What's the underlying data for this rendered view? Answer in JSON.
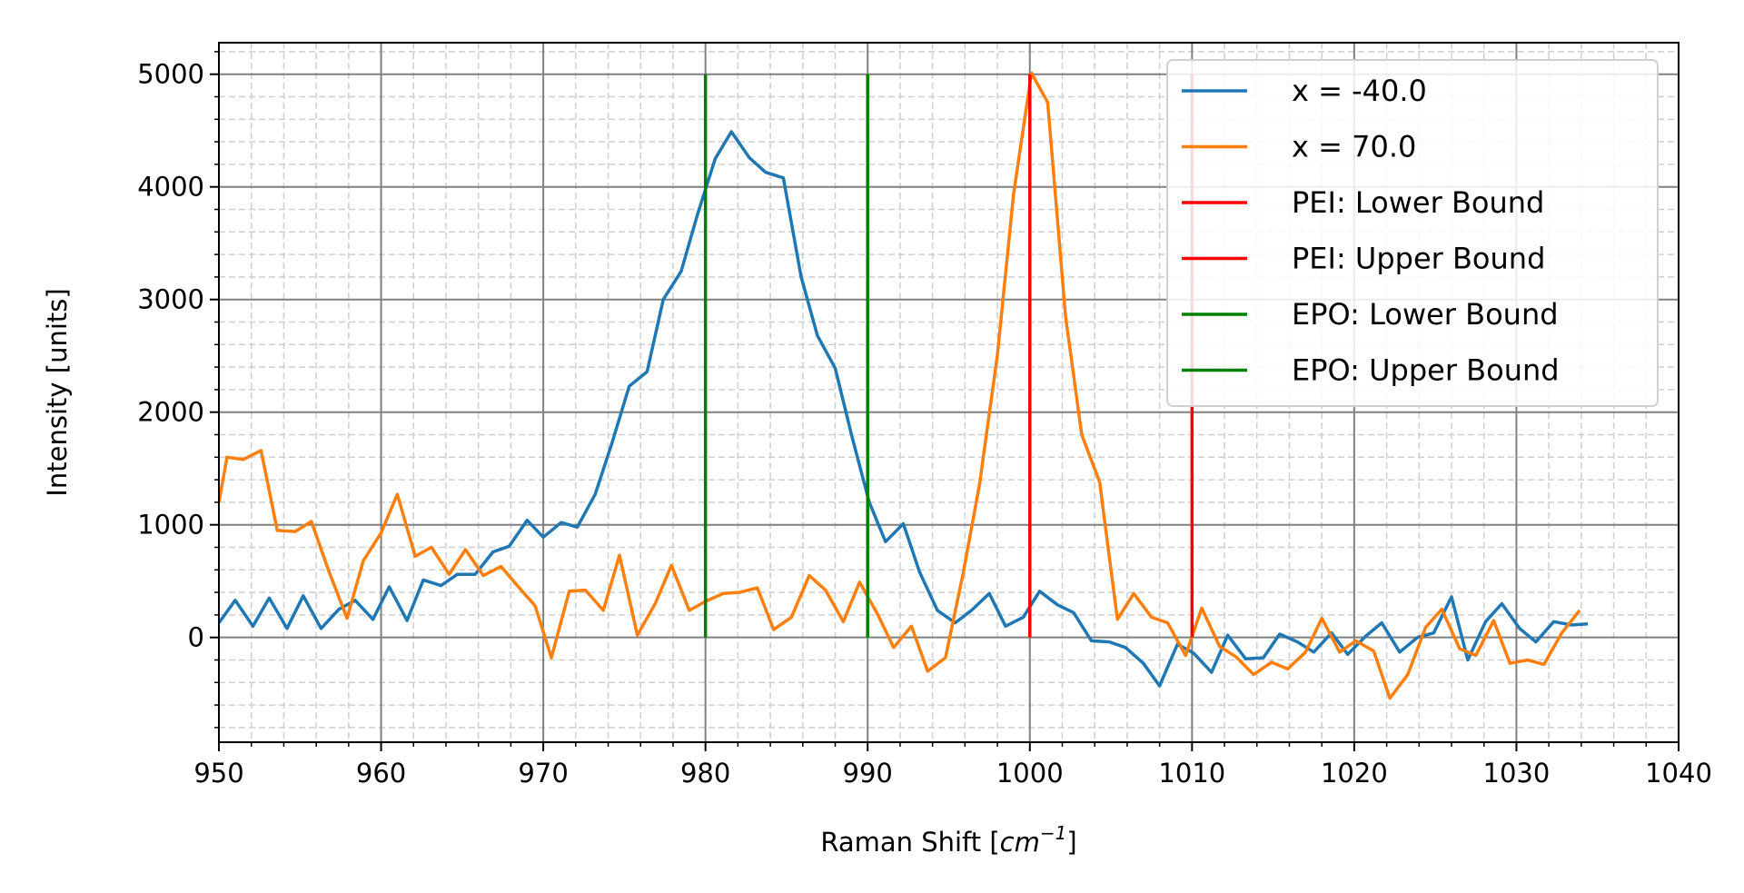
{
  "chart_data": {
    "type": "line",
    "title": "",
    "xlabel": "Raman Shift [",
    "xlabel_unit": "cm",
    "xlabel_exp": "−1",
    "xlabel_close": "]",
    "ylabel": "Intensity [units]",
    "xlim": [
      950,
      1040
    ],
    "ylim": [
      -930,
      5280
    ],
    "grid": true,
    "minor_grid": true,
    "legend_position": "top-right",
    "x_ticks": [
      950,
      960,
      970,
      980,
      990,
      1000,
      1010,
      1020,
      1030,
      1040
    ],
    "x_tick_labels": [
      "950",
      "960",
      "970",
      "980",
      "990",
      "1000",
      "1010",
      "1020",
      "1030",
      "1040"
    ],
    "y_ticks": [
      0,
      1000,
      2000,
      3000,
      4000,
      5000
    ],
    "y_tick_labels": [
      "0",
      "1000",
      "2000",
      "3000",
      "4000",
      "5000"
    ],
    "series": [
      {
        "name": "x = -40.0",
        "color": "#1f77b4",
        "points": [
          [
            950.0,
            130
          ],
          [
            951.0,
            330
          ],
          [
            952.1,
            100
          ],
          [
            953.1,
            350
          ],
          [
            954.2,
            80
          ],
          [
            955.2,
            370
          ],
          [
            956.3,
            80
          ],
          [
            957.4,
            250
          ],
          [
            958.4,
            330
          ],
          [
            959.5,
            160
          ],
          [
            960.5,
            450
          ],
          [
            961.6,
            150
          ],
          [
            962.6,
            510
          ],
          [
            963.7,
            460
          ],
          [
            964.7,
            560
          ],
          [
            965.8,
            560
          ],
          [
            966.9,
            760
          ],
          [
            967.9,
            810
          ],
          [
            969.0,
            1040
          ],
          [
            970.0,
            890
          ],
          [
            971.1,
            1020
          ],
          [
            972.1,
            980
          ],
          [
            973.2,
            1270
          ],
          [
            974.2,
            1710
          ],
          [
            975.3,
            2230
          ],
          [
            976.4,
            2360
          ],
          [
            977.4,
            3000
          ],
          [
            978.5,
            3250
          ],
          [
            979.5,
            3750
          ],
          [
            980.6,
            4250
          ],
          [
            981.6,
            4490
          ],
          [
            982.7,
            4260
          ],
          [
            983.7,
            4130
          ],
          [
            984.8,
            4080
          ],
          [
            985.9,
            3200
          ],
          [
            986.9,
            2680
          ],
          [
            988.0,
            2390
          ],
          [
            989.0,
            1800
          ],
          [
            990.1,
            1200
          ],
          [
            991.1,
            850
          ],
          [
            992.2,
            1010
          ],
          [
            993.2,
            580
          ],
          [
            994.3,
            240
          ],
          [
            995.4,
            130
          ],
          [
            996.4,
            240
          ],
          [
            997.5,
            390
          ],
          [
            998.5,
            100
          ],
          [
            999.6,
            180
          ],
          [
            1000.6,
            410
          ],
          [
            1001.7,
            290
          ],
          [
            1002.7,
            220
          ],
          [
            1003.8,
            -30
          ],
          [
            1004.9,
            -40
          ],
          [
            1005.9,
            -90
          ],
          [
            1007.0,
            -230
          ],
          [
            1008.0,
            -430
          ],
          [
            1009.1,
            -60
          ],
          [
            1010.1,
            -140
          ],
          [
            1011.2,
            -310
          ],
          [
            1012.2,
            20
          ],
          [
            1013.3,
            -190
          ],
          [
            1014.4,
            -180
          ],
          [
            1015.4,
            30
          ],
          [
            1016.5,
            -40
          ],
          [
            1017.5,
            -130
          ],
          [
            1018.6,
            40
          ],
          [
            1019.6,
            -150
          ],
          [
            1020.7,
            10
          ],
          [
            1021.7,
            130
          ],
          [
            1022.8,
            -130
          ],
          [
            1023.9,
            0
          ],
          [
            1024.9,
            40
          ],
          [
            1026.0,
            360
          ],
          [
            1027.0,
            -200
          ],
          [
            1028.1,
            140
          ],
          [
            1029.1,
            300
          ],
          [
            1030.2,
            80
          ],
          [
            1031.2,
            -40
          ],
          [
            1032.3,
            140
          ],
          [
            1033.4,
            110
          ],
          [
            1034.4,
            120
          ]
        ]
      },
      {
        "name": "x = 70.0",
        "color": "#ff7f0e",
        "points": [
          [
            950.0,
            1200
          ],
          [
            950.5,
            1600
          ],
          [
            951.5,
            1580
          ],
          [
            952.6,
            1660
          ],
          [
            953.6,
            950
          ],
          [
            954.7,
            940
          ],
          [
            955.7,
            1030
          ],
          [
            956.8,
            580
          ],
          [
            957.9,
            170
          ],
          [
            958.9,
            680
          ],
          [
            960.0,
            930
          ],
          [
            961.0,
            1270
          ],
          [
            962.1,
            720
          ],
          [
            963.1,
            800
          ],
          [
            964.2,
            560
          ],
          [
            965.2,
            780
          ],
          [
            966.3,
            550
          ],
          [
            967.4,
            630
          ],
          [
            968.4,
            460
          ],
          [
            969.5,
            280
          ],
          [
            970.5,
            -180
          ],
          [
            971.6,
            410
          ],
          [
            972.6,
            420
          ],
          [
            973.7,
            240
          ],
          [
            974.7,
            730
          ],
          [
            975.8,
            20
          ],
          [
            976.9,
            300
          ],
          [
            977.9,
            640
          ],
          [
            979.0,
            240
          ],
          [
            980.0,
            320
          ],
          [
            981.1,
            390
          ],
          [
            982.1,
            400
          ],
          [
            983.2,
            440
          ],
          [
            984.2,
            70
          ],
          [
            985.3,
            180
          ],
          [
            986.4,
            550
          ],
          [
            987.4,
            420
          ],
          [
            988.5,
            140
          ],
          [
            989.5,
            490
          ],
          [
            990.6,
            210
          ],
          [
            991.6,
            -90
          ],
          [
            992.7,
            100
          ],
          [
            993.7,
            -300
          ],
          [
            994.8,
            -180
          ],
          [
            995.9,
            580
          ],
          [
            996.9,
            1360
          ],
          [
            998.0,
            2510
          ],
          [
            999.0,
            3940
          ],
          [
            1000.1,
            5010
          ],
          [
            1001.1,
            4750
          ],
          [
            1002.2,
            2850
          ],
          [
            1003.2,
            1800
          ],
          [
            1004.3,
            1380
          ],
          [
            1005.4,
            160
          ],
          [
            1006.4,
            390
          ],
          [
            1007.5,
            180
          ],
          [
            1008.5,
            130
          ],
          [
            1009.6,
            -160
          ],
          [
            1010.6,
            260
          ],
          [
            1011.7,
            -80
          ],
          [
            1012.7,
            -170
          ],
          [
            1013.8,
            -330
          ],
          [
            1014.9,
            -220
          ],
          [
            1015.9,
            -280
          ],
          [
            1017.0,
            -130
          ],
          [
            1018.0,
            170
          ],
          [
            1019.1,
            -130
          ],
          [
            1020.1,
            -30
          ],
          [
            1021.2,
            -120
          ],
          [
            1022.2,
            -540
          ],
          [
            1023.3,
            -330
          ],
          [
            1024.4,
            90
          ],
          [
            1025.4,
            250
          ],
          [
            1026.5,
            -100
          ],
          [
            1027.5,
            -160
          ],
          [
            1028.6,
            150
          ],
          [
            1029.6,
            -230
          ],
          [
            1030.7,
            -200
          ],
          [
            1031.7,
            -240
          ],
          [
            1032.8,
            40
          ],
          [
            1033.9,
            240
          ]
        ]
      }
    ],
    "vlines": [
      {
        "name": "PEI: Lower Bound",
        "x": 1000,
        "ymin": 0,
        "ymax": 5000,
        "color": "#ff0000"
      },
      {
        "name": "PEI: Upper Bound",
        "x": 1010,
        "ymin": 0,
        "ymax": 5000,
        "color": "#ff0000"
      },
      {
        "name": "EPO: Lower Bound",
        "x": 980,
        "ymin": 0,
        "ymax": 5000,
        "color": "#008000"
      },
      {
        "name": "EPO: Upper Bound",
        "x": 990,
        "ymin": 0,
        "ymax": 5000,
        "color": "#008000"
      }
    ]
  }
}
